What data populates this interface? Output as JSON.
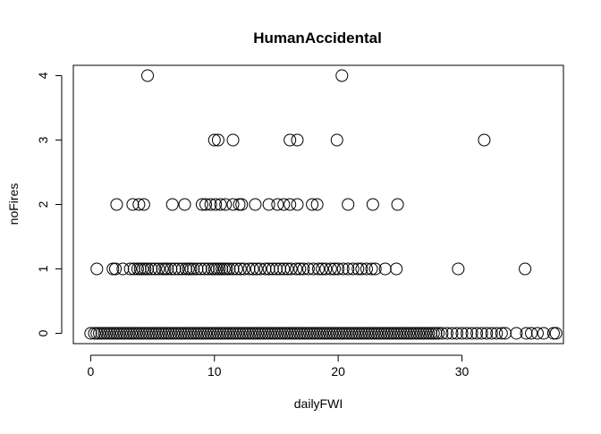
{
  "chart_data": {
    "type": "scatter",
    "title": "HumanAccidental",
    "xlabel": "dailyFWI",
    "ylabel": "noFires",
    "xlim": [
      -1.4,
      38.2
    ],
    "ylim": [
      -0.16,
      4.16
    ],
    "xticks": [
      0,
      10,
      20,
      30
    ],
    "yticks": [
      0,
      1,
      2,
      3,
      4
    ],
    "grid": false,
    "legend": "none",
    "marker": "open-circle",
    "marker_color": "#000000",
    "series": [
      {
        "points": [
          [
            0.0,
            0
          ],
          [
            0.3,
            0
          ],
          [
            0.5,
            0
          ],
          [
            0.7,
            0
          ],
          [
            0.9,
            0
          ],
          [
            1.1,
            0
          ],
          [
            1.3,
            0
          ],
          [
            1.5,
            0
          ],
          [
            1.7,
            0
          ],
          [
            1.9,
            0
          ],
          [
            2.1,
            0
          ],
          [
            2.3,
            0
          ],
          [
            2.5,
            0
          ],
          [
            2.7,
            0
          ],
          [
            2.9,
            0
          ],
          [
            3.1,
            0
          ],
          [
            3.3,
            0
          ],
          [
            3.5,
            0
          ],
          [
            3.7,
            0
          ],
          [
            3.9,
            0
          ],
          [
            4.1,
            0
          ],
          [
            4.3,
            0
          ],
          [
            4.5,
            0
          ],
          [
            4.7,
            0
          ],
          [
            4.9,
            0
          ],
          [
            5.1,
            0
          ],
          [
            5.3,
            0
          ],
          [
            5.5,
            0
          ],
          [
            5.7,
            0
          ],
          [
            5.9,
            0
          ],
          [
            6.1,
            0
          ],
          [
            6.3,
            0
          ],
          [
            6.5,
            0
          ],
          [
            6.7,
            0
          ],
          [
            6.9,
            0
          ],
          [
            7.1,
            0
          ],
          [
            7.3,
            0
          ],
          [
            7.5,
            0
          ],
          [
            7.7,
            0
          ],
          [
            7.9,
            0
          ],
          [
            8.1,
            0
          ],
          [
            8.3,
            0
          ],
          [
            8.5,
            0
          ],
          [
            8.7,
            0
          ],
          [
            8.9,
            0
          ],
          [
            9.1,
            0
          ],
          [
            9.3,
            0
          ],
          [
            9.5,
            0
          ],
          [
            9.7,
            0
          ],
          [
            9.9,
            0
          ],
          [
            10.1,
            0
          ],
          [
            10.3,
            0
          ],
          [
            10.5,
            0
          ],
          [
            10.7,
            0
          ],
          [
            10.9,
            0
          ],
          [
            11.1,
            0
          ],
          [
            11.3,
            0
          ],
          [
            11.5,
            0
          ],
          [
            11.7,
            0
          ],
          [
            11.9,
            0
          ],
          [
            12.1,
            0
          ],
          [
            12.3,
            0
          ],
          [
            12.5,
            0
          ],
          [
            12.7,
            0
          ],
          [
            12.9,
            0
          ],
          [
            13.1,
            0
          ],
          [
            13.3,
            0
          ],
          [
            13.5,
            0
          ],
          [
            13.7,
            0
          ],
          [
            13.9,
            0
          ],
          [
            14.1,
            0
          ],
          [
            14.3,
            0
          ],
          [
            14.5,
            0
          ],
          [
            14.7,
            0
          ],
          [
            14.9,
            0
          ],
          [
            15.1,
            0
          ],
          [
            15.3,
            0
          ],
          [
            15.5,
            0
          ],
          [
            15.7,
            0
          ],
          [
            15.9,
            0
          ],
          [
            16.1,
            0
          ],
          [
            16.3,
            0
          ],
          [
            16.5,
            0
          ],
          [
            16.7,
            0
          ],
          [
            16.9,
            0
          ],
          [
            17.1,
            0
          ],
          [
            17.3,
            0
          ],
          [
            17.5,
            0
          ],
          [
            17.7,
            0
          ],
          [
            17.9,
            0
          ],
          [
            18.1,
            0
          ],
          [
            18.3,
            0
          ],
          [
            18.5,
            0
          ],
          [
            18.7,
            0
          ],
          [
            18.9,
            0
          ],
          [
            19.1,
            0
          ],
          [
            19.3,
            0
          ],
          [
            19.5,
            0
          ],
          [
            19.7,
            0
          ],
          [
            19.9,
            0
          ],
          [
            20.1,
            0
          ],
          [
            20.3,
            0
          ],
          [
            20.5,
            0
          ],
          [
            20.7,
            0
          ],
          [
            20.9,
            0
          ],
          [
            21.1,
            0
          ],
          [
            21.3,
            0
          ],
          [
            21.5,
            0
          ],
          [
            21.7,
            0
          ],
          [
            21.9,
            0
          ],
          [
            22.1,
            0
          ],
          [
            22.3,
            0
          ],
          [
            22.5,
            0
          ],
          [
            22.7,
            0
          ],
          [
            22.9,
            0
          ],
          [
            23.1,
            0
          ],
          [
            23.3,
            0
          ],
          [
            23.5,
            0
          ],
          [
            23.7,
            0
          ],
          [
            23.9,
            0
          ],
          [
            24.1,
            0
          ],
          [
            24.3,
            0
          ],
          [
            24.5,
            0
          ],
          [
            24.7,
            0
          ],
          [
            24.9,
            0
          ],
          [
            25.1,
            0
          ],
          [
            25.3,
            0
          ],
          [
            25.5,
            0
          ],
          [
            25.7,
            0
          ],
          [
            25.9,
            0
          ],
          [
            26.1,
            0
          ],
          [
            26.3,
            0
          ],
          [
            26.5,
            0
          ],
          [
            26.7,
            0
          ],
          [
            26.9,
            0
          ],
          [
            27.1,
            0
          ],
          [
            27.3,
            0
          ],
          [
            27.5,
            0
          ],
          [
            27.7,
            0
          ],
          [
            27.9,
            0
          ],
          [
            28.1,
            0
          ],
          [
            28.4,
            0
          ],
          [
            28.8,
            0
          ],
          [
            29.2,
            0
          ],
          [
            29.6,
            0
          ],
          [
            30.0,
            0
          ],
          [
            30.4,
            0
          ],
          [
            30.8,
            0
          ],
          [
            31.2,
            0
          ],
          [
            31.6,
            0
          ],
          [
            32.0,
            0
          ],
          [
            32.4,
            0
          ],
          [
            32.8,
            0
          ],
          [
            33.2,
            0
          ],
          [
            33.5,
            0
          ],
          [
            34.4,
            0
          ],
          [
            35.2,
            0
          ],
          [
            35.6,
            0
          ],
          [
            36.1,
            0
          ],
          [
            36.6,
            0
          ],
          [
            37.4,
            0
          ],
          [
            37.6,
            0
          ],
          [
            0.5,
            1
          ],
          [
            1.8,
            1
          ],
          [
            2.0,
            1
          ],
          [
            2.6,
            1
          ],
          [
            3.2,
            1
          ],
          [
            3.5,
            1
          ],
          [
            3.8,
            1
          ],
          [
            4.0,
            1
          ],
          [
            4.2,
            1
          ],
          [
            4.4,
            1
          ],
          [
            4.6,
            1
          ],
          [
            4.9,
            1
          ],
          [
            5.2,
            1
          ],
          [
            5.5,
            1
          ],
          [
            5.8,
            1
          ],
          [
            6.0,
            1
          ],
          [
            6.2,
            1
          ],
          [
            6.5,
            1
          ],
          [
            6.8,
            1
          ],
          [
            7.1,
            1
          ],
          [
            7.4,
            1
          ],
          [
            7.7,
            1
          ],
          [
            7.9,
            1
          ],
          [
            8.1,
            1
          ],
          [
            8.3,
            1
          ],
          [
            8.6,
            1
          ],
          [
            8.9,
            1
          ],
          [
            9.2,
            1
          ],
          [
            9.5,
            1
          ],
          [
            9.8,
            1
          ],
          [
            10.0,
            1
          ],
          [
            10.2,
            1
          ],
          [
            10.4,
            1
          ],
          [
            10.6,
            1
          ],
          [
            10.8,
            1
          ],
          [
            11.0,
            1
          ],
          [
            11.2,
            1
          ],
          [
            11.5,
            1
          ],
          [
            11.8,
            1
          ],
          [
            12.1,
            1
          ],
          [
            12.4,
            1
          ],
          [
            12.8,
            1
          ],
          [
            13.1,
            1
          ],
          [
            13.4,
            1
          ],
          [
            13.7,
            1
          ],
          [
            14.1,
            1
          ],
          [
            14.4,
            1
          ],
          [
            14.7,
            1
          ],
          [
            15.0,
            1
          ],
          [
            15.3,
            1
          ],
          [
            15.6,
            1
          ],
          [
            15.9,
            1
          ],
          [
            16.2,
            1
          ],
          [
            16.6,
            1
          ],
          [
            16.9,
            1
          ],
          [
            17.2,
            1
          ],
          [
            17.6,
            1
          ],
          [
            18.0,
            1
          ],
          [
            18.4,
            1
          ],
          [
            18.7,
            1
          ],
          [
            19.0,
            1
          ],
          [
            19.4,
            1
          ],
          [
            19.7,
            1
          ],
          [
            20.0,
            1
          ],
          [
            20.4,
            1
          ],
          [
            20.8,
            1
          ],
          [
            21.2,
            1
          ],
          [
            21.6,
            1
          ],
          [
            21.9,
            1
          ],
          [
            22.3,
            1
          ],
          [
            22.7,
            1
          ],
          [
            23.0,
            1
          ],
          [
            23.8,
            1
          ],
          [
            24.7,
            1
          ],
          [
            29.7,
            1
          ],
          [
            35.1,
            1
          ],
          [
            2.1,
            2
          ],
          [
            3.4,
            2
          ],
          [
            3.9,
            2
          ],
          [
            4.3,
            2
          ],
          [
            6.6,
            2
          ],
          [
            7.6,
            2
          ],
          [
            9.0,
            2
          ],
          [
            9.3,
            2
          ],
          [
            9.7,
            2
          ],
          [
            10.1,
            2
          ],
          [
            10.5,
            2
          ],
          [
            10.9,
            2
          ],
          [
            11.5,
            2
          ],
          [
            12.0,
            2
          ],
          [
            12.2,
            2
          ],
          [
            13.3,
            2
          ],
          [
            14.4,
            2
          ],
          [
            15.1,
            2
          ],
          [
            15.6,
            2
          ],
          [
            16.1,
            2
          ],
          [
            16.7,
            2
          ],
          [
            17.9,
            2
          ],
          [
            18.3,
            2
          ],
          [
            20.8,
            2
          ],
          [
            22.8,
            2
          ],
          [
            24.8,
            2
          ],
          [
            10.0,
            3
          ],
          [
            10.3,
            3
          ],
          [
            11.5,
            3
          ],
          [
            16.1,
            3
          ],
          [
            16.7,
            3
          ],
          [
            19.9,
            3
          ],
          [
            31.8,
            3
          ],
          [
            4.6,
            4
          ],
          [
            20.3,
            4
          ]
        ]
      }
    ]
  }
}
